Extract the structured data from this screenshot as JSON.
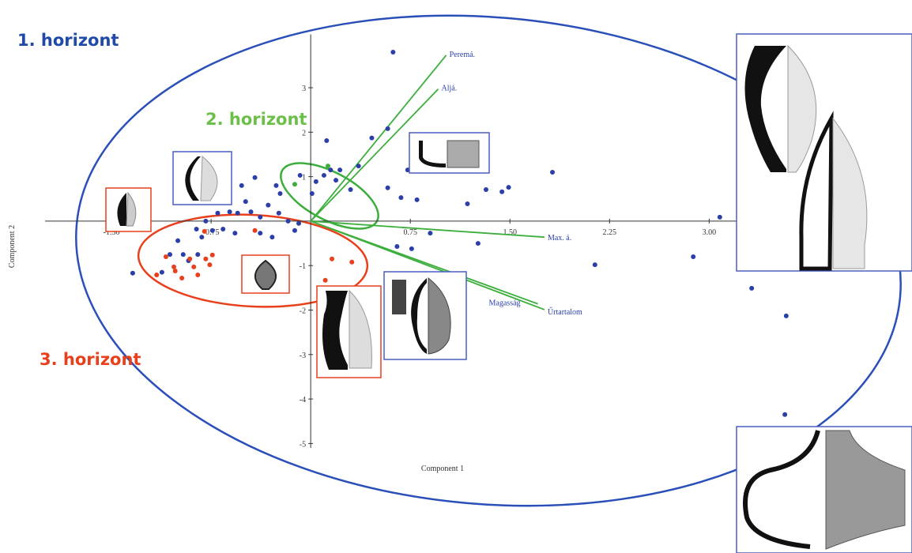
{
  "chart_data": {
    "type": "scatter",
    "x_label": "Component 1",
    "y_label": "Component 2",
    "xlim": [
      -2.0,
      3.7
    ],
    "ylim": [
      -5.1,
      4.2
    ],
    "xticks": [
      {
        "value": -1.5,
        "label": "-1.50"
      },
      {
        "value": -0.75,
        "label": "-0.75"
      },
      {
        "value": 0.75,
        "label": "0.75"
      },
      {
        "value": 1.5,
        "label": "1.50"
      },
      {
        "value": 2.25,
        "label": "2.25"
      },
      {
        "value": 3.0,
        "label": "3.00"
      }
    ],
    "yticks": [
      3,
      2,
      1,
      -1,
      -2,
      -3,
      -4,
      -5
    ],
    "series": [
      {
        "color": "#2b3fa8",
        "x": [
          0.62,
          0.58,
          0.46,
          0.12,
          0.36,
          0.15,
          0.22,
          0.19,
          0.1,
          0.04,
          -0.08,
          0.01,
          -0.26,
          -0.23,
          -0.32,
          -0.42,
          -0.52,
          -0.73,
          -0.49,
          -0.61,
          -0.7,
          -0.55,
          -0.45,
          -0.38,
          -0.24,
          -0.17,
          -0.09,
          -0.79,
          -0.86,
          -0.82,
          -0.74,
          -0.66,
          -0.57,
          -0.38,
          -0.29,
          -0.12,
          -1.0,
          -1.06,
          -0.96,
          -0.85,
          -0.92,
          -1.12,
          -1.34,
          0.73,
          0.58,
          0.68,
          0.8,
          0.85,
          1.18,
          1.32,
          1.44,
          1.49,
          1.82,
          0.9,
          0.65,
          0.76,
          1.26,
          2.14,
          2.88,
          3.08,
          3.32,
          3.58,
          3.57,
          0.3
        ],
        "values": [
          3.8,
          2.08,
          1.87,
          1.81,
          1.24,
          1.15,
          1.15,
          0.92,
          1.03,
          0.89,
          1.03,
          0.62,
          0.8,
          0.62,
          0.36,
          0.98,
          0.8,
          0.78,
          0.44,
          0.21,
          0.18,
          0.18,
          0.21,
          0.09,
          0.18,
          0.0,
          -0.05,
          0.0,
          -0.18,
          -0.36,
          -0.21,
          -0.18,
          -0.27,
          -0.27,
          -0.36,
          -0.21,
          -0.44,
          -0.75,
          -0.75,
          -0.75,
          -0.89,
          -1.15,
          -1.17,
          1.15,
          0.75,
          0.53,
          0.48,
          1.15,
          0.39,
          0.71,
          0.66,
          0.76,
          1.1,
          -0.27,
          -0.57,
          -0.62,
          -0.5,
          -0.98,
          -0.8,
          0.09,
          -1.51,
          -2.13,
          -4.35,
          0.71
        ]
      },
      {
        "color": "#e8401c",
        "x": [
          -0.42,
          -0.8,
          0.31,
          0.16,
          0.11,
          -1.09,
          -1.16,
          -1.02,
          -0.91,
          -0.88,
          -0.79,
          -0.76,
          -0.97,
          -0.85,
          -0.74,
          -1.03
        ],
        "values": [
          -0.21,
          -0.23,
          -0.92,
          -0.85,
          -1.33,
          -0.8,
          -1.21,
          -1.12,
          -0.85,
          -1.03,
          -0.85,
          -0.98,
          -1.28,
          -1.21,
          -0.76,
          -1.03
        ]
      },
      {
        "color": "#3cae3c",
        "x": [
          -0.12,
          0.13
        ],
        "values": [
          0.83,
          1.24
        ]
      }
    ],
    "vectors": {
      "color": "#3cae3c",
      "label_color": "#2b3fa8",
      "items": [
        {
          "label": "Peremá.",
          "x": 1.02,
          "y": 3.73
        },
        {
          "label": "Aljá.",
          "x": 0.96,
          "y": 2.97
        },
        {
          "label": "Max. á.",
          "x": 1.76,
          "y": -0.36
        },
        {
          "label": "Magasság",
          "x": 1.71,
          "y": -1.86
        },
        {
          "label": "Űrtartalom",
          "x": 1.76,
          "y": -1.99
        }
      ]
    },
    "annotations": [
      {
        "text": "1. horizont",
        "color": "#1f4aa8"
      },
      {
        "text": "2. horizont",
        "color": "#6cc04a"
      },
      {
        "text": "3. horizont",
        "color": "#e8401c"
      }
    ]
  }
}
